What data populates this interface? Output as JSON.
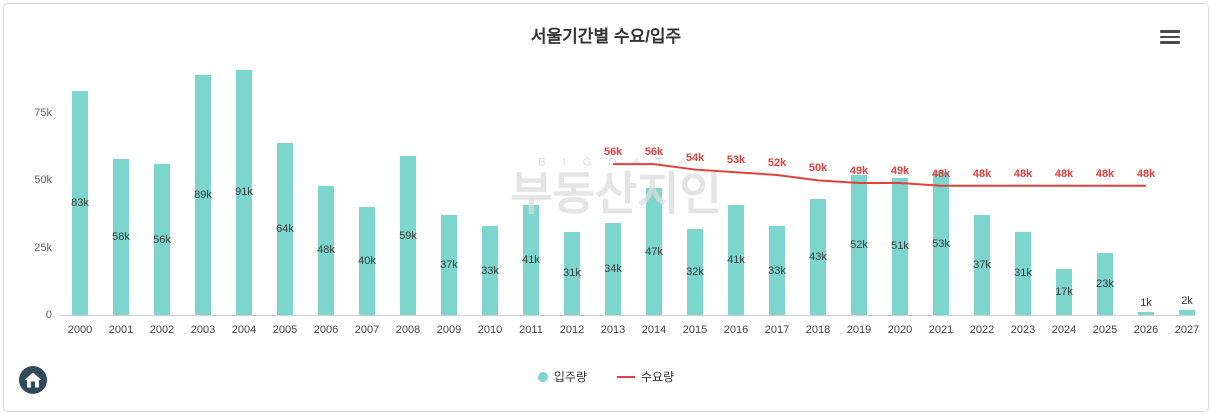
{
  "watermark": {
    "top": "B I G D A T A",
    "main": "부동산지인"
  },
  "menu": {
    "icon": "hamburger-menu"
  },
  "chart_data": {
    "type": "bar+line",
    "title": "서울기간별 수요/입주",
    "categories": [
      "2000",
      "2001",
      "2002",
      "2003",
      "2004",
      "2005",
      "2006",
      "2007",
      "2008",
      "2009",
      "2010",
      "2011",
      "2012",
      "2013",
      "2014",
      "2015",
      "2016",
      "2017",
      "2018",
      "2019",
      "2020",
      "2021",
      "2022",
      "2023",
      "2024",
      "2025",
      "2026",
      "2027"
    ],
    "unit": "k",
    "ylim": [
      0,
      90
    ],
    "grid": false,
    "legend_position": "bottom-center",
    "yticks": [
      {
        "label": "0",
        "value": 0
      },
      {
        "label": "25k",
        "value": 25
      },
      {
        "label": "50k",
        "value": 50
      },
      {
        "label": "75k",
        "value": 75
      }
    ],
    "series": [
      {
        "name": "입주량",
        "type": "bar",
        "color": "#7cd6ce",
        "values": [
          83,
          58,
          56,
          89,
          91,
          64,
          48,
          40,
          59,
          37,
          33,
          41,
          31,
          34,
          47,
          32,
          41,
          33,
          43,
          52,
          51,
          53,
          37,
          31,
          17,
          23,
          1,
          2
        ],
        "labels": [
          "83k",
          "58k",
          "56k",
          "89k",
          "91k",
          "64k",
          "48k",
          "40k",
          "59k",
          "37k",
          "33k",
          "41k",
          "31k",
          "34k",
          "47k",
          "32k",
          "41k",
          "33k",
          "43k",
          "52k",
          "51k",
          "53k",
          "37k",
          "31k",
          "17k",
          "23k",
          "1k",
          "2k"
        ]
      },
      {
        "name": "수요량",
        "type": "line",
        "color": "#e0413c",
        "start_index": 13,
        "values": [
          56,
          56,
          54,
          53,
          52,
          50,
          49,
          49,
          48,
          48,
          48,
          48,
          48,
          48
        ],
        "labels": [
          "56k",
          "56k",
          "54k",
          "53k",
          "52k",
          "50k",
          "49k",
          "49k",
          "48k",
          "48k",
          "48k",
          "48k",
          "48k",
          "48k"
        ]
      }
    ]
  }
}
